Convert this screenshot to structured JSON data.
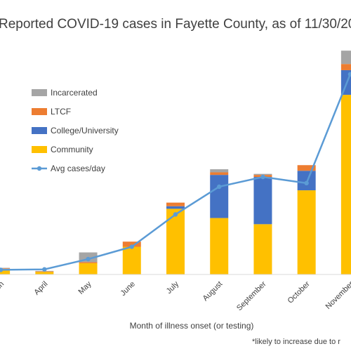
{
  "chart_data": {
    "type": "bar",
    "stacked": true,
    "title": "Reported COVID-19 cases in Fayette County, as of 11/30/20",
    "xlabel": "Month of illness onset (or testing)",
    "ylabel": "",
    "footnote": "*likely to increase due to r",
    "categories": [
      "March",
      "April",
      "May",
      "June",
      "July",
      "August",
      "September",
      "October",
      "November"
    ],
    "ylim": [
      0,
      2400
    ],
    "grid": false,
    "legend_position": "top-left",
    "series": [
      {
        "name": "Community",
        "kind": "bar",
        "color": "#FFC000",
        "values": [
          55,
          25,
          110,
          270,
          640,
          550,
          490,
          820,
          1750
        ]
      },
      {
        "name": "College/University",
        "kind": "bar",
        "color": "#4472C4",
        "values": [
          0,
          0,
          0,
          0,
          25,
          420,
          460,
          190,
          240
        ]
      },
      {
        "name": "LTCF",
        "kind": "bar",
        "color": "#ED7D31",
        "values": [
          5,
          5,
          10,
          50,
          35,
          25,
          20,
          55,
          60
        ]
      },
      {
        "name": "Incarcerated",
        "kind": "bar",
        "color": "#A5A5A5",
        "values": [
          5,
          5,
          95,
          0,
          0,
          30,
          10,
          0,
          130
        ]
      },
      {
        "name": "Avg cases/day",
        "kind": "line",
        "color": "#5B9BD5",
        "values": [
          45,
          50,
          150,
          270,
          585,
          855,
          950,
          890,
          1950
        ]
      }
    ]
  }
}
